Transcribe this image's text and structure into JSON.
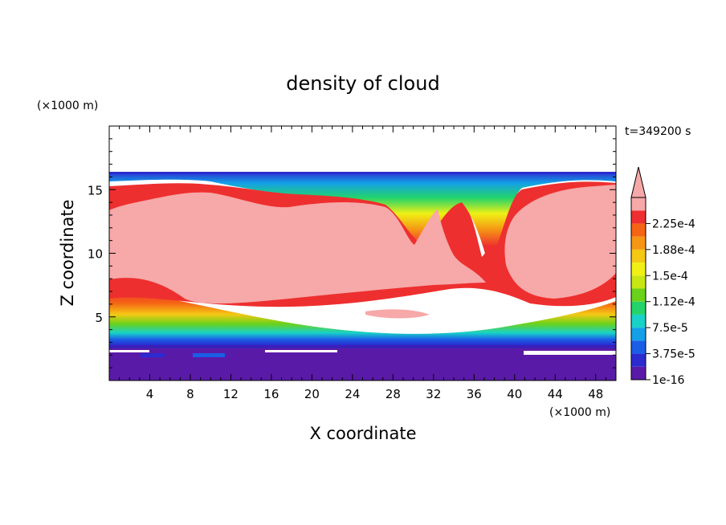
{
  "chart_data": {
    "type": "heatmap",
    "title": "density of cloud",
    "xlabel": "X coordinate",
    "ylabel": "Z coordinate",
    "x_unit": "(×1000 m)",
    "y_unit": "(×1000 m)",
    "time_label": "t=349200 s",
    "xlim": [
      0,
      50
    ],
    "ylim": [
      0,
      20
    ],
    "x_ticks": [
      4,
      8,
      12,
      16,
      20,
      24,
      28,
      32,
      36,
      40,
      44,
      48
    ],
    "y_ticks": [
      5,
      10,
      15
    ],
    "colorbar": {
      "levels": [
        "1e-16",
        "3.75e-5",
        "7.5e-5",
        "1.12e-4",
        "1.5e-4",
        "1.88e-4",
        "2.25e-4"
      ],
      "colors": [
        "#5a1aa8",
        "#2b2bd0",
        "#1a5ee6",
        "#14a0e8",
        "#18d2c8",
        "#22d46a",
        "#6ad21a",
        "#c8e614",
        "#f0f014",
        "#f5c814",
        "#f59614",
        "#f56414",
        "#ee2f2f",
        "#f7a8a8"
      ],
      "overflow_color": "#f7a8a8"
    },
    "fields": {
      "cloud_top_z": 16.1,
      "cloud_base_z": 3.0,
      "saturated_core_zrange": [
        6,
        15
      ]
    }
  }
}
